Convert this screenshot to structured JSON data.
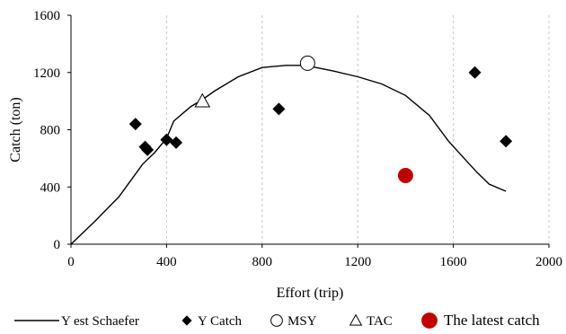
{
  "chart_data": {
    "type": "scatter",
    "title": "",
    "xlabel": "Effort (trip)",
    "ylabel": "Catch (ton)",
    "xlim": [
      0,
      2000
    ],
    "ylim": [
      0,
      1600
    ],
    "xticks": [
      0,
      400,
      800,
      1200,
      1600,
      2000
    ],
    "yticks": [
      0,
      400,
      800,
      1200,
      1600
    ],
    "grid": "vertical dashed",
    "legend_position": "bottom",
    "series": [
      {
        "name": "Y est Schaefer",
        "kind": "line",
        "color": "#000000",
        "points": [
          [
            0,
            0
          ],
          [
            100,
            160
          ],
          [
            200,
            330
          ],
          [
            300,
            560
          ],
          [
            350,
            640
          ],
          [
            400,
            740
          ],
          [
            430,
            860
          ],
          [
            500,
            960
          ],
          [
            550,
            1010
          ],
          [
            600,
            1070
          ],
          [
            700,
            1170
          ],
          [
            800,
            1235
          ],
          [
            900,
            1250
          ],
          [
            980,
            1250
          ],
          [
            1100,
            1210
          ],
          [
            1200,
            1170
          ],
          [
            1300,
            1120
          ],
          [
            1400,
            1040
          ],
          [
            1500,
            900
          ],
          [
            1580,
            720
          ],
          [
            1640,
            610
          ],
          [
            1700,
            500
          ],
          [
            1750,
            420
          ],
          [
            1820,
            370
          ]
        ]
      },
      {
        "name": "Y Catch",
        "kind": "diamond",
        "color": "#000000",
        "points": [
          [
            270,
            840
          ],
          [
            310,
            680
          ],
          [
            320,
            660
          ],
          [
            400,
            730
          ],
          [
            440,
            710
          ],
          [
            870,
            945
          ],
          [
            1690,
            1200
          ],
          [
            1820,
            720
          ]
        ]
      },
      {
        "name": "MSY",
        "kind": "circle-open",
        "color": "#000000",
        "points": [
          [
            990,
            1265
          ]
        ]
      },
      {
        "name": "TAC",
        "kind": "triangle-open",
        "color": "#000000",
        "points": [
          [
            550,
            1000
          ]
        ]
      },
      {
        "name": "The latest catch",
        "kind": "circle-filled",
        "color": "#c00000",
        "points": [
          [
            1400,
            480
          ]
        ]
      }
    ]
  }
}
